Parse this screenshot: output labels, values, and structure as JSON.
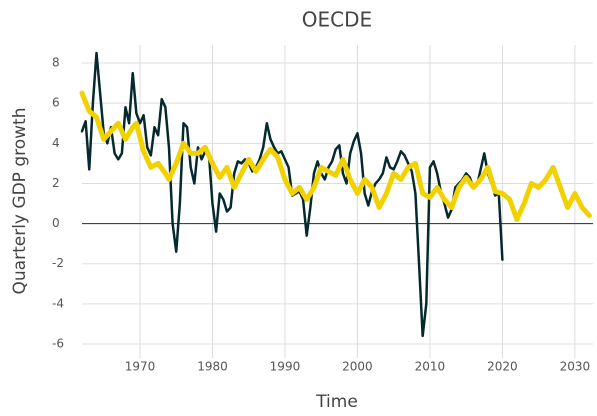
{
  "chart_data": {
    "type": "line",
    "title": "OECDE",
    "xlabel": "Time",
    "ylabel": "Quarterly GDP growth",
    "xlim": [
      1962,
      2032.5
    ],
    "ylim": [
      -6.7,
      8.9
    ],
    "xticks": [
      1970,
      1980,
      1990,
      2000,
      2010,
      2020,
      2030
    ],
    "yticks": [
      -6,
      -4,
      -2,
      0,
      2,
      4,
      6,
      8
    ],
    "grid": true,
    "zero_line": true,
    "series": [
      {
        "color": "#052a2e",
        "width": 2.5,
        "x": [
          1962,
          1962.5,
          1963,
          1963.5,
          1964,
          1964.5,
          1965,
          1965.5,
          1966,
          1966.5,
          1967,
          1967.5,
          1968,
          1968.5,
          1969,
          1969.5,
          1970,
          1970.5,
          1971,
          1971.5,
          1972,
          1972.5,
          1973,
          1973.5,
          1974,
          1974.5,
          1975,
          1975.5,
          1976,
          1976.5,
          1977,
          1977.5,
          1978,
          1978.5,
          1979,
          1979.5,
          1980,
          1980.5,
          1981,
          1981.5,
          1982,
          1982.5,
          1983,
          1983.5,
          1984,
          1984.5,
          1985,
          1985.5,
          1986,
          1986.5,
          1987,
          1987.5,
          1988,
          1988.5,
          1989,
          1989.5,
          1990,
          1990.5,
          1991,
          1991.5,
          1992,
          1992.5,
          1993,
          1993.5,
          1994,
          1994.5,
          1995,
          1995.5,
          1996,
          1996.5,
          1997,
          1997.5,
          1998,
          1998.5,
          1999,
          1999.5,
          2000,
          2000.5,
          2001,
          2001.5,
          2002,
          2002.5,
          2003,
          2003.5,
          2004,
          2004.5,
          2005,
          2005.5,
          2006,
          2006.5,
          2007,
          2007.5,
          2008,
          2008.5,
          2009,
          2009.5,
          2010,
          2010.5,
          2011,
          2011.5,
          2012,
          2012.5,
          2013,
          2013.5,
          2014,
          2014.5,
          2015,
          2015.5,
          2016,
          2016.5,
          2017,
          2017.5,
          2018,
          2018.5,
          2019,
          2019.5,
          2020
        ],
        "values": [
          4.6,
          5.1,
          2.7,
          6,
          8.5,
          6.5,
          4.5,
          4,
          4.8,
          3.5,
          3.2,
          3.5,
          5.8,
          5,
          7.5,
          5.5,
          5,
          5.4,
          3.8,
          3.4,
          4.8,
          4.4,
          6.2,
          5.8,
          3.8,
          0,
          -1.4,
          1,
          5,
          4.8,
          2.8,
          2,
          3.8,
          3.2,
          3.6,
          3.5,
          1,
          -0.4,
          1.5,
          1.2,
          0.6,
          0.8,
          2.5,
          3.1,
          3,
          3.2,
          3,
          2.6,
          2.8,
          3.2,
          3.8,
          5,
          4.2,
          3.8,
          3.5,
          3.6,
          3.2,
          2.8,
          1.4,
          1.5,
          1.6,
          1.2,
          -0.6,
          0.8,
          2.5,
          3.1,
          2.5,
          2.2,
          2.8,
          3.1,
          3.7,
          3.9,
          2.5,
          2,
          3.5,
          4.1,
          4.5,
          3.5,
          1.5,
          0.9,
          1.6,
          2,
          2.2,
          2.5,
          3.3,
          2.8,
          2.7,
          3.1,
          3.6,
          3.4,
          3,
          2.6,
          1.5,
          -2,
          -5.6,
          -4,
          2.8,
          3.1,
          2.5,
          1.6,
          1,
          0.3,
          0.7,
          1.8,
          2,
          2.2,
          2.5,
          2.3,
          1.8,
          1.9,
          2.7,
          3.5,
          2.5,
          2,
          1.4,
          1.5,
          -1.8
        ]
      },
      {
        "color": "#f2d100",
        "width": 5,
        "x": [
          1962,
          1963,
          1964,
          1965,
          1966,
          1967,
          1968,
          1969,
          1969.5,
          1970.5,
          1971.5,
          1972.5,
          1973.5,
          1974,
          1975,
          1976,
          1977,
          1978,
          1979,
          1980,
          1981,
          1982,
          1983,
          1984,
          1985,
          1986,
          1987,
          1988,
          1989,
          1990,
          1991,
          1992,
          1993,
          1994,
          1995,
          1996,
          1997,
          1998,
          1999,
          2000,
          2001,
          2002,
          2003,
          2004,
          2005,
          2006,
          2007,
          2008,
          2009,
          2010,
          2011,
          2012,
          2013,
          2014,
          2015,
          2016,
          2017,
          2018,
          2019,
          2020,
          2021,
          2022,
          2023,
          2024,
          2025,
          2026,
          2027,
          2028,
          2029,
          2030,
          2031,
          2032
        ],
        "values": [
          6.5,
          5.6,
          5.3,
          4.2,
          4.6,
          5,
          4.2,
          4.8,
          5,
          3.6,
          2.8,
          3,
          2.5,
          2.2,
          3,
          4,
          3.5,
          3.5,
          3.8,
          3,
          2.3,
          2.8,
          1.8,
          2.5,
          3.2,
          2.6,
          3.2,
          3.7,
          3.3,
          2.2,
          1.5,
          1.8,
          1.2,
          1.8,
          2.8,
          2.6,
          2.4,
          3.2,
          2.2,
          1.5,
          2.2,
          1.8,
          0.8,
          1.5,
          2.5,
          2.2,
          2.8,
          3,
          1.5,
          1.3,
          1.8,
          1.2,
          0.8,
          1.8,
          2.3,
          1.8,
          2.2,
          2.8,
          1.6,
          1.5,
          1.2,
          0.2,
          1,
          2,
          1.8,
          2.2,
          2.8,
          1.8,
          0.8,
          1.5,
          0.8,
          0.4
        ]
      }
    ]
  }
}
